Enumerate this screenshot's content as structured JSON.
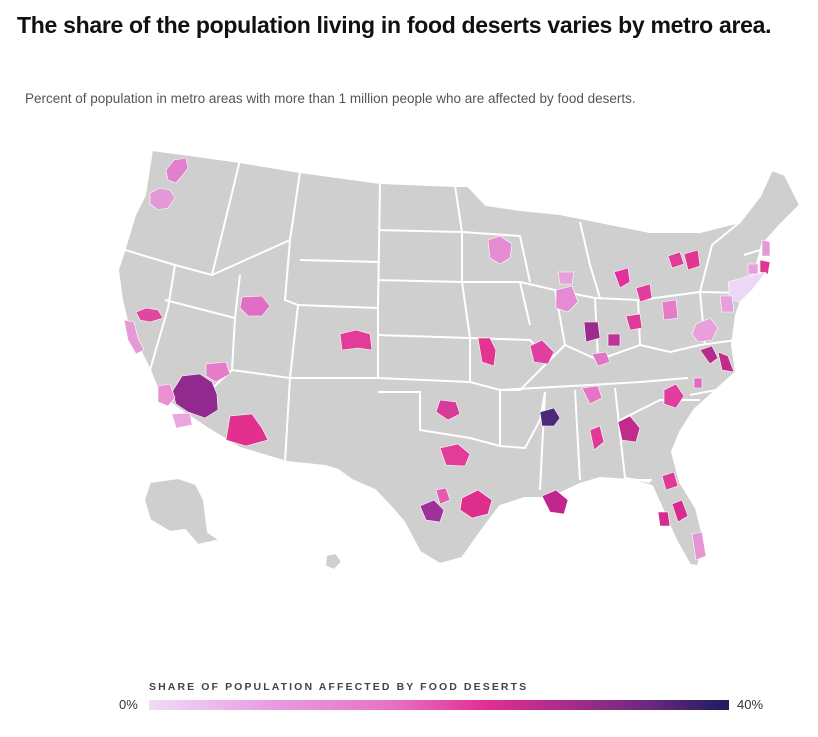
{
  "title": "The share of the population living in food deserts varies by metro area.",
  "subtitle": "Percent of population in metro areas with more than 1 million people who are affected by food deserts.",
  "legend": {
    "title": "SHARE OF POPULATION AFFECTED BY FOOD DESERTS",
    "min_label": "0%",
    "max_label": "40%",
    "colors": [
      "#f0dcf6",
      "#e79ae2",
      "#e672c3",
      "#e22e92",
      "#a92c8a",
      "#6a2a7e",
      "#1d1b5e"
    ]
  },
  "map": {
    "base_color": "#cfcfcf",
    "border_color": "#ffffff",
    "region": "United States"
  }
}
